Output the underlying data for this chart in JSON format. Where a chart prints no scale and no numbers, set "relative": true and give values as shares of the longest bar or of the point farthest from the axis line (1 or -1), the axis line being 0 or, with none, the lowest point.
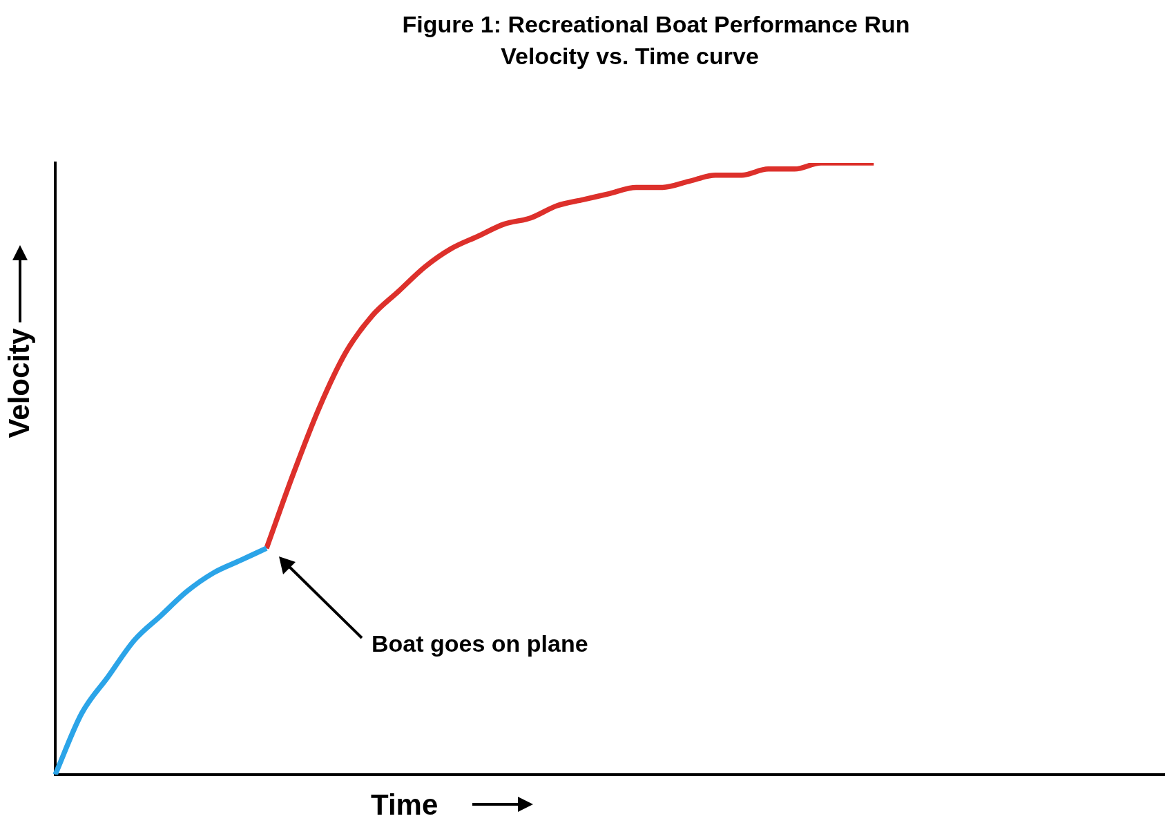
{
  "chart_data": {
    "type": "line",
    "title": "Figure 1: Recreational Boat Performance Run",
    "subtitle": "Velocity vs. Time curve",
    "xlabel": "Time",
    "ylabel": "Velocity",
    "annotations": [
      "Boat goes on plane"
    ],
    "relative": true,
    "legend": false,
    "grid": false,
    "tick_labels": false,
    "marker": "none",
    "line_style": "solid",
    "categories": [
      null,
      null,
      null,
      null,
      null,
      null,
      null,
      null,
      null,
      null,
      null,
      null,
      null,
      null,
      null,
      null,
      null,
      null,
      null,
      null,
      null,
      null,
      null,
      null,
      null,
      null,
      null,
      null,
      null,
      null,
      null,
      null,
      null,
      null,
      null,
      null,
      null,
      null,
      null,
      null,
      null,
      null,
      null
    ],
    "series": [
      {
        "color": "#2ba4e8",
        "values": [
          0,
          0.1,
          0.16,
          0.22,
          0.26,
          0.3,
          0.33,
          0.35,
          0.37,
          null,
          null,
          null,
          null,
          null,
          null,
          null,
          null,
          null,
          null,
          null,
          null,
          null,
          null,
          null,
          null,
          null,
          null,
          null,
          null,
          null,
          null,
          null,
          null,
          null,
          null,
          null,
          null,
          null,
          null,
          null,
          null,
          null,
          null
        ]
      },
      {
        "color": "#dd302b",
        "values": [
          null,
          null,
          null,
          null,
          null,
          null,
          null,
          null,
          0.37,
          0.49,
          0.6,
          0.69,
          0.75,
          0.79,
          0.83,
          0.86,
          0.88,
          0.9,
          0.91,
          0.93,
          0.94,
          0.95,
          0.96,
          0.96,
          0.97,
          0.98,
          0.98,
          0.99,
          0.99,
          1.0,
          1.0,
          1.0,
          null,
          null,
          null,
          null,
          null,
          null,
          null,
          null,
          null,
          null,
          null
        ]
      }
    ]
  }
}
